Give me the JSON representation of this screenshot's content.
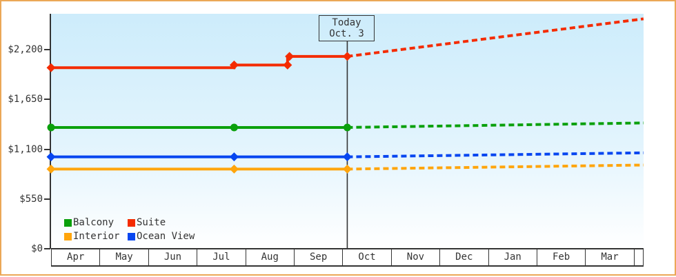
{
  "frame": {
    "border_color": "#eba757",
    "axis_color": "#333333",
    "plot_bg_top": "#cdecfb",
    "plot_bg_bottom": "#ffffff"
  },
  "today_box": {
    "line1": "Today",
    "line2": "Oct. 3"
  },
  "chart_data": {
    "type": "line",
    "title": "",
    "xlabel": "",
    "ylabel": "",
    "x_axis": {
      "categories": [
        "Apr",
        "May",
        "Jun",
        "Jul",
        "Aug",
        "Sep",
        "Oct",
        "Nov",
        "Dec",
        "Jan",
        "Feb",
        "Mar"
      ],
      "range_month_units": [
        0,
        12.2
      ]
    },
    "y_axis": {
      "tick_labels": [
        "$0",
        "$550",
        "$1,100",
        "$1,650",
        "$2,200"
      ],
      "tick_values": [
        0,
        550,
        1100,
        1650,
        2200
      ],
      "ylim": [
        0,
        2200
      ]
    },
    "grid": false,
    "today": {
      "label": "Today Oct. 3",
      "month_position": 6.1
    },
    "legend_position": "bottom-left",
    "legend": [
      {
        "label": "Balcony",
        "color": "#0aa00c"
      },
      {
        "label": "Suite",
        "color": "#f42b00"
      },
      {
        "label": "Interior",
        "color": "#ffa50c"
      },
      {
        "label": "Ocean View",
        "color": "#0646f0"
      }
    ],
    "series": [
      {
        "name": "Balcony",
        "color": "#0aa00c",
        "marker": "circle",
        "observed": [
          [
            0,
            1340
          ],
          [
            3.77,
            1340
          ],
          [
            6.1,
            1340
          ]
        ],
        "marker_points": [
          [
            0,
            1340
          ],
          [
            3.77,
            1340
          ],
          [
            6.1,
            1340
          ]
        ],
        "forecast": [
          [
            6.1,
            1340
          ],
          [
            12.2,
            1390
          ]
        ]
      },
      {
        "name": "Suite",
        "color": "#f42b00",
        "marker": "diamond",
        "observed": [
          [
            0,
            2000
          ],
          [
            3.77,
            2000
          ],
          [
            3.77,
            2030
          ],
          [
            4.87,
            2030
          ],
          [
            4.87,
            2125
          ],
          [
            6.1,
            2125
          ]
        ],
        "marker_points": [
          [
            0,
            2000
          ],
          [
            3.77,
            2030
          ],
          [
            4.87,
            2030
          ],
          [
            4.91,
            2125
          ],
          [
            6.1,
            2125
          ]
        ],
        "forecast": [
          [
            6.1,
            2125
          ],
          [
            12.2,
            2540
          ]
        ]
      },
      {
        "name": "Interior",
        "color": "#ffa50c",
        "marker": "diamond",
        "observed": [
          [
            0,
            880
          ],
          [
            3.77,
            880
          ],
          [
            6.1,
            880
          ]
        ],
        "marker_points": [
          [
            0,
            880
          ],
          [
            3.77,
            880
          ],
          [
            6.1,
            880
          ]
        ],
        "forecast": [
          [
            6.1,
            880
          ],
          [
            12.2,
            925
          ]
        ]
      },
      {
        "name": "Ocean View",
        "color": "#0646f0",
        "marker": "diamond",
        "observed": [
          [
            0,
            1015
          ],
          [
            3.77,
            1015
          ],
          [
            6.1,
            1015
          ]
        ],
        "marker_points": [
          [
            0,
            1015
          ],
          [
            3.77,
            1015
          ],
          [
            6.1,
            1015
          ]
        ],
        "forecast": [
          [
            6.1,
            1015
          ],
          [
            12.2,
            1060
          ]
        ]
      }
    ]
  }
}
